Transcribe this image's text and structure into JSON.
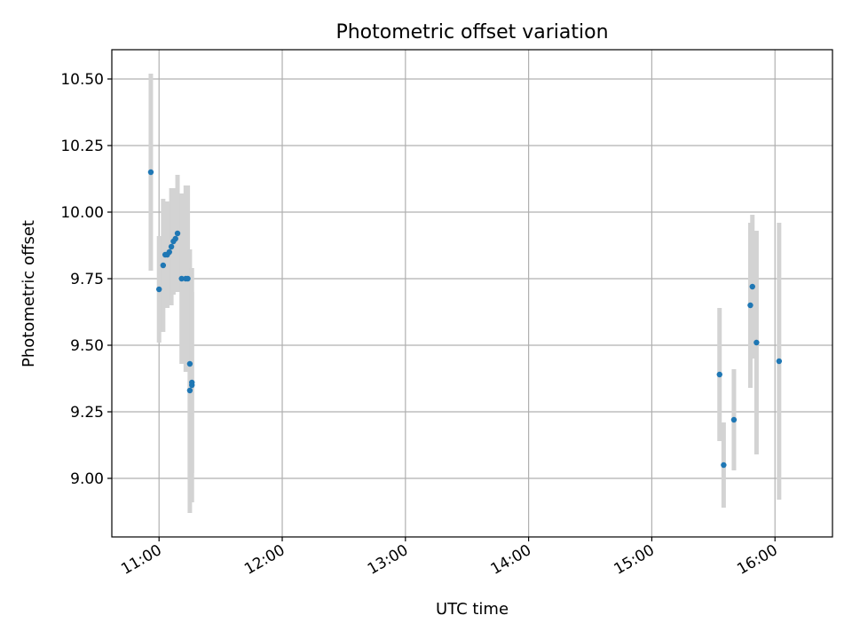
{
  "chart_data": {
    "type": "scatter",
    "title": "Photometric offset variation",
    "xlabel": "UTC time",
    "ylabel": "Photometric offset",
    "x_ticks": [
      "11:00",
      "12:00",
      "13:00",
      "14:00",
      "15:00",
      "16:00"
    ],
    "y_ticks": [
      "9.00",
      "9.25",
      "9.50",
      "9.75",
      "10.00",
      "10.25",
      "10.50"
    ],
    "xlim": [
      "10:37",
      "16:28"
    ],
    "ylim": [
      8.78,
      10.61
    ],
    "grid": true,
    "colors": {
      "points": "#1f77b4",
      "errorbars": "#d3d3d3",
      "grid": "#b0b0b0"
    },
    "points": [
      {
        "x": "10:56",
        "y": 10.15,
        "yerr": 0.37
      },
      {
        "x": "11:00",
        "y": 9.71,
        "yerr": 0.2
      },
      {
        "x": "11:02",
        "y": 9.8,
        "yerr": 0.25
      },
      {
        "x": "11:03",
        "y": 9.84,
        "yerr": 0.2
      },
      {
        "x": "11:04",
        "y": 9.84,
        "yerr": 0.2
      },
      {
        "x": "11:05",
        "y": 9.85,
        "yerr": 0.18
      },
      {
        "x": "11:06",
        "y": 9.87,
        "yerr": 0.22
      },
      {
        "x": "11:07",
        "y": 9.89,
        "yerr": 0.2
      },
      {
        "x": "11:08",
        "y": 9.9,
        "yerr": 0.19
      },
      {
        "x": "11:09",
        "y": 9.92,
        "yerr": 0.22
      },
      {
        "x": "11:11",
        "y": 9.75,
        "yerr": 0.32
      },
      {
        "x": "11:13",
        "y": 9.75,
        "yerr": 0.35
      },
      {
        "x": "11:14",
        "y": 9.75,
        "yerr": 0.35
      },
      {
        "x": "11:15",
        "y": 9.43,
        "yerr": 0.43
      },
      {
        "x": "11:15",
        "y": 9.33,
        "yerr": 0.46
      },
      {
        "x": "11:16",
        "y": 9.35,
        "yerr": 0.44
      },
      {
        "x": "11:16",
        "y": 9.36,
        "yerr": 0.34
      },
      {
        "x": "15:33",
        "y": 9.39,
        "yerr": 0.25
      },
      {
        "x": "15:35",
        "y": 9.05,
        "yerr": 0.16
      },
      {
        "x": "15:40",
        "y": 9.22,
        "yerr": 0.19
      },
      {
        "x": "15:48",
        "y": 9.65,
        "yerr": 0.31
      },
      {
        "x": "15:49",
        "y": 9.72,
        "yerr": 0.27
      },
      {
        "x": "15:51",
        "y": 9.51,
        "yerr": 0.42
      },
      {
        "x": "16:02",
        "y": 9.44,
        "yerr": 0.52
      }
    ]
  }
}
